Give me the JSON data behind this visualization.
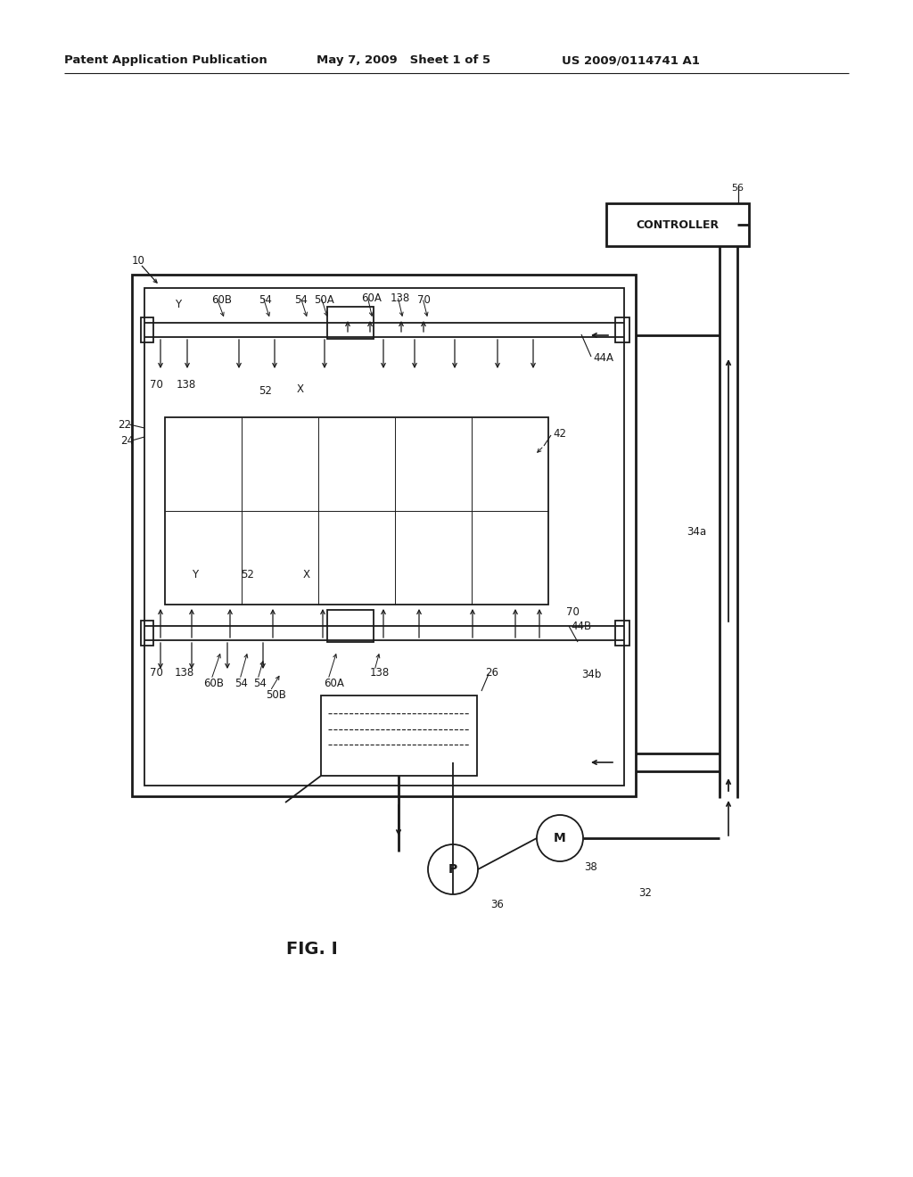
{
  "bg_color": "#ffffff",
  "line_color": "#1a1a1a",
  "header_left": "Patent Application Publication",
  "header_mid": "May 7, 2009   Sheet 1 of 5",
  "header_right": "US 2009/0114741 A1",
  "fig_label": "FIG. I",
  "controller_label": "CONTROLLER"
}
